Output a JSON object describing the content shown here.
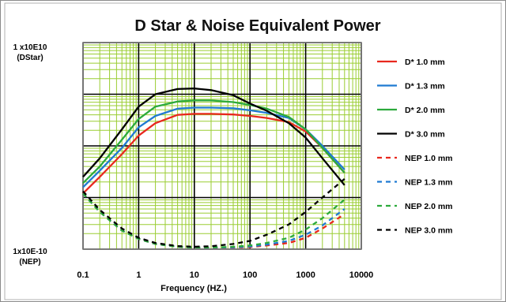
{
  "chart_data": {
    "type": "line",
    "title": "D Star & Noise Equivalent Power",
    "xlabel": "Frequency (HZ.)",
    "x_scale": "log",
    "xlim": [
      0.1,
      10000
    ],
    "x_ticks": [
      "0.1",
      "1",
      "10",
      "100",
      "1000",
      "10000"
    ],
    "y_top_label": [
      "1 x10E10",
      "(DStar)"
    ],
    "y_bottom_label": [
      "1x10E-10",
      "(NEP)"
    ],
    "grid": true,
    "legend_position": "right",
    "colors": {
      "grid_major": "#000000",
      "grid_minor": "#9acd32",
      "frame": "#7a7a7a",
      "red": "#e8281e",
      "blue": "#1f7ad2",
      "green": "#2caa3c",
      "black": "#000000"
    },
    "series": [
      {
        "name": "D* 1.0 mm",
        "color": "#e8281e",
        "dash": false,
        "x": [
          0.1,
          0.2,
          0.5,
          1,
          2,
          5,
          10,
          20,
          50,
          100,
          200,
          500,
          1000,
          2000,
          5000
        ],
        "y": [
          0.27,
          0.35,
          0.46,
          0.55,
          0.61,
          0.65,
          0.655,
          0.655,
          0.652,
          0.645,
          0.635,
          0.615,
          0.57,
          0.49,
          0.37
        ]
      },
      {
        "name": "D* 1.3 mm",
        "color": "#1f7ad2",
        "dash": false,
        "x": [
          0.1,
          0.2,
          0.5,
          1,
          2,
          5,
          10,
          20,
          50,
          100,
          200,
          500,
          1000,
          2000,
          5000
        ],
        "y": [
          0.3,
          0.38,
          0.49,
          0.59,
          0.645,
          0.68,
          0.685,
          0.685,
          0.682,
          0.672,
          0.66,
          0.635,
          0.58,
          0.5,
          0.385
        ]
      },
      {
        "name": "D* 2.0 mm",
        "color": "#2caa3c",
        "dash": false,
        "x": [
          0.1,
          0.2,
          0.5,
          1,
          2,
          5,
          10,
          20,
          50,
          100,
          200,
          500,
          1000,
          2000,
          5000
        ],
        "y": [
          0.32,
          0.4,
          0.53,
          0.63,
          0.69,
          0.715,
          0.72,
          0.72,
          0.712,
          0.698,
          0.68,
          0.64,
          0.58,
          0.49,
          0.37
        ]
      },
      {
        "name": "D* 3.0 mm",
        "color": "#000000",
        "dash": false,
        "x": [
          0.1,
          0.2,
          0.5,
          1,
          2,
          5,
          10,
          20,
          50,
          100,
          200,
          500,
          1000,
          2000,
          5000
        ],
        "y": [
          0.35,
          0.44,
          0.58,
          0.69,
          0.75,
          0.775,
          0.778,
          0.77,
          0.745,
          0.705,
          0.67,
          0.61,
          0.54,
          0.44,
          0.31
        ]
      },
      {
        "name": "NEP 1.0 mm",
        "color": "#e8281e",
        "dash": true,
        "x": [
          0.1,
          0.2,
          0.5,
          1,
          2,
          5,
          10,
          20,
          50,
          100,
          200,
          500,
          1000,
          2000,
          5000
        ],
        "y": [
          0.27,
          0.18,
          0.09,
          0.05,
          0.025,
          0.012,
          0.008,
          0.007,
          0.008,
          0.01,
          0.018,
          0.03,
          0.055,
          0.1,
          0.17
        ]
      },
      {
        "name": "NEP 1.3 mm",
        "color": "#1f7ad2",
        "dash": true,
        "x": [
          0.1,
          0.2,
          0.5,
          1,
          2,
          5,
          10,
          20,
          50,
          100,
          200,
          500,
          1000,
          2000,
          5000
        ],
        "y": [
          0.27,
          0.18,
          0.09,
          0.05,
          0.025,
          0.012,
          0.008,
          0.007,
          0.009,
          0.013,
          0.022,
          0.04,
          0.07,
          0.115,
          0.195
        ]
      },
      {
        "name": "NEP 2.0 mm",
        "color": "#2caa3c",
        "dash": true,
        "x": [
          0.1,
          0.2,
          0.5,
          1,
          2,
          5,
          10,
          20,
          50,
          100,
          200,
          500,
          1000,
          2000,
          5000
        ],
        "y": [
          0.27,
          0.18,
          0.09,
          0.05,
          0.025,
          0.012,
          0.008,
          0.008,
          0.012,
          0.018,
          0.03,
          0.055,
          0.095,
          0.15,
          0.24
        ]
      },
      {
        "name": "NEP 3.0 mm",
        "color": "#000000",
        "dash": true,
        "x": [
          0.1,
          0.2,
          0.5,
          1,
          2,
          5,
          10,
          20,
          50,
          100,
          200,
          500,
          1000,
          2000,
          5000
        ],
        "y": [
          0.28,
          0.19,
          0.1,
          0.055,
          0.03,
          0.015,
          0.012,
          0.014,
          0.025,
          0.04,
          0.07,
          0.12,
          0.18,
          0.25,
          0.34
        ]
      }
    ]
  }
}
